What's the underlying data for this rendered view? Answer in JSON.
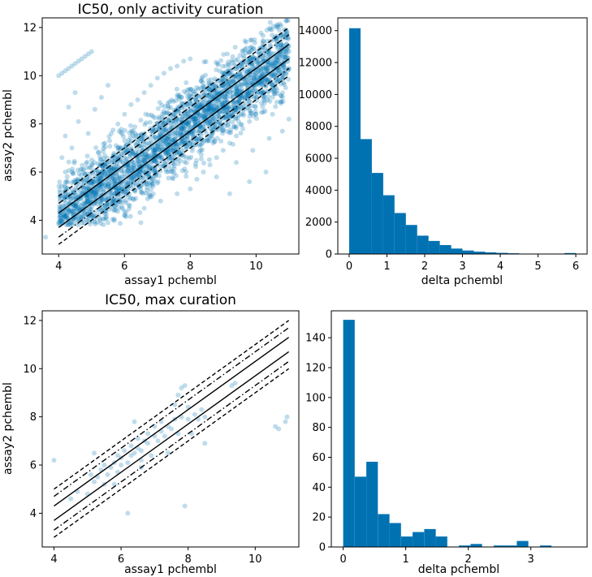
{
  "colors": {
    "marker": "#0072b2",
    "bar": "#0072b2",
    "axis": "#000000",
    "line": "#000000"
  },
  "chart_data": [
    {
      "id": "scatter-top",
      "type": "scatter",
      "title": "IC50, only activity curation",
      "xlabel": "assay1 pchembl",
      "ylabel": "assay2 pchembl",
      "xlim": [
        3.5,
        11.3
      ],
      "ylim": [
        2.6,
        12.4
      ],
      "xticks": [
        4,
        6,
        8,
        10
      ],
      "yticks": [
        4,
        6,
        8,
        10,
        12
      ],
      "reference_lines": [
        {
          "style": "solid",
          "offset": 0.3
        },
        {
          "style": "solid",
          "offset": -0.3
        },
        {
          "style": "dashdot",
          "offset": 0.7
        },
        {
          "style": "dashdot",
          "offset": -0.7
        },
        {
          "style": "dashed",
          "offset": 1.0
        },
        {
          "style": "dashed",
          "offset": -1.0
        }
      ],
      "x_range": [
        4,
        11
      ],
      "point_alpha": 0.25,
      "points": [
        [
          4.0,
          10.0
        ],
        [
          4.1,
          10.1
        ],
        [
          4.2,
          10.2
        ],
        [
          4.3,
          10.3
        ],
        [
          4.4,
          10.4
        ],
        [
          4.5,
          10.5
        ],
        [
          4.6,
          10.6
        ],
        [
          4.7,
          10.7
        ],
        [
          4.8,
          10.8
        ],
        [
          4.9,
          10.9
        ],
        [
          5.0,
          11.0
        ],
        [
          3.6,
          3.3
        ],
        [
          4.0,
          3.9
        ],
        [
          4.1,
          4.4
        ],
        [
          4.2,
          4.9
        ],
        [
          4.3,
          5.3
        ],
        [
          4.3,
          4.1
        ],
        [
          4.5,
          4.6
        ],
        [
          4.5,
          5.6
        ],
        [
          4.6,
          3.8
        ],
        [
          4.7,
          4.9
        ],
        [
          4.8,
          5.9
        ],
        [
          4.8,
          4.3
        ],
        [
          5.0,
          5.2
        ],
        [
          5.0,
          6.3
        ],
        [
          5.0,
          4.4
        ],
        [
          5.2,
          5.6
        ],
        [
          5.2,
          6.8
        ],
        [
          5.3,
          4.7
        ],
        [
          5.4,
          5.9
        ],
        [
          5.4,
          7.2
        ],
        [
          5.5,
          4.9
        ],
        [
          5.6,
          6.2
        ],
        [
          5.6,
          7.6
        ],
        [
          5.7,
          5.1
        ],
        [
          5.8,
          6.5
        ],
        [
          5.8,
          8.0
        ],
        [
          5.9,
          5.4
        ],
        [
          6.0,
          6.8
        ],
        [
          6.0,
          8.4
        ],
        [
          6.1,
          5.6
        ],
        [
          6.2,
          7.0
        ],
        [
          6.2,
          8.8
        ],
        [
          6.3,
          5.8
        ],
        [
          6.4,
          7.2
        ],
        [
          6.4,
          9.0
        ],
        [
          6.5,
          6.0
        ],
        [
          6.6,
          7.5
        ],
        [
          6.6,
          9.3
        ],
        [
          6.7,
          6.3
        ],
        [
          6.8,
          7.7
        ],
        [
          6.8,
          9.6
        ],
        [
          6.9,
          6.5
        ],
        [
          7.0,
          8.0
        ],
        [
          7.0,
          9.9
        ],
        [
          7.1,
          6.7
        ],
        [
          7.2,
          8.2
        ],
        [
          7.2,
          10.1
        ],
        [
          7.3,
          6.9
        ],
        [
          7.4,
          8.4
        ],
        [
          7.4,
          10.3
        ],
        [
          7.5,
          7.1
        ],
        [
          7.6,
          8.6
        ],
        [
          7.6,
          10.4
        ],
        [
          7.7,
          7.3
        ],
        [
          7.8,
          8.8
        ],
        [
          7.8,
          10.6
        ],
        [
          7.9,
          7.5
        ],
        [
          8.0,
          9.0
        ],
        [
          8.0,
          10.7
        ],
        [
          8.1,
          7.7
        ],
        [
          8.2,
          9.2
        ],
        [
          8.2,
          5.7
        ],
        [
          8.3,
          7.9
        ],
        [
          8.4,
          9.4
        ],
        [
          8.4,
          6.0
        ],
        [
          8.5,
          8.1
        ],
        [
          8.6,
          9.6
        ],
        [
          8.6,
          6.3
        ],
        [
          8.7,
          8.3
        ],
        [
          8.8,
          9.8
        ],
        [
          8.8,
          6.6
        ],
        [
          8.9,
          8.5
        ],
        [
          9.0,
          10.0
        ],
        [
          9.0,
          6.9
        ],
        [
          9.1,
          8.7
        ],
        [
          9.2,
          10.2
        ],
        [
          9.2,
          7.2
        ],
        [
          9.3,
          8.9
        ],
        [
          9.4,
          10.4
        ],
        [
          9.4,
          7.5
        ],
        [
          9.5,
          9.1
        ],
        [
          9.6,
          10.5
        ],
        [
          9.6,
          7.8
        ],
        [
          9.7,
          9.3
        ],
        [
          9.8,
          10.6
        ],
        [
          9.8,
          8.1
        ],
        [
          9.9,
          9.5
        ],
        [
          10.0,
          10.7
        ],
        [
          10.0,
          8.4
        ],
        [
          10.1,
          9.7
        ],
        [
          10.2,
          10.8
        ],
        [
          10.2,
          8.7
        ],
        [
          10.3,
          9.9
        ],
        [
          10.4,
          10.9
        ],
        [
          10.5,
          10.1
        ],
        [
          10.6,
          10.4
        ],
        [
          10.7,
          10.6
        ],
        [
          10.8,
          10.8
        ],
        [
          10.9,
          10.9
        ],
        [
          11.0,
          10.3
        ],
        [
          10.8,
          7.7
        ],
        [
          10.5,
          8.4
        ],
        [
          11.0,
          8.2
        ],
        [
          10.9,
          9.5
        ],
        [
          4.2,
          6.0
        ],
        [
          4.4,
          7.0
        ],
        [
          4.6,
          8.1
        ],
        [
          4.5,
          9.3
        ],
        [
          4.3,
          8.7
        ],
        [
          4.9,
          7.6
        ],
        [
          5.1,
          8.6
        ],
        [
          5.3,
          9.1
        ],
        [
          5.5,
          9.6
        ],
        [
          4.1,
          6.6
        ],
        [
          4.2,
          7.5
        ],
        [
          6.0,
          4.2
        ],
        [
          6.6,
          4.5
        ],
        [
          7.1,
          4.8
        ],
        [
          7.6,
          5.1
        ],
        [
          8.0,
          5.3
        ],
        [
          8.8,
          5.8
        ],
        [
          9.4,
          6.4
        ],
        [
          9.9,
          6.9
        ],
        [
          10.4,
          7.4
        ],
        [
          6.5,
          3.9
        ],
        [
          5.5,
          3.9
        ],
        [
          9.8,
          5.6
        ],
        [
          10.3,
          6.0
        ],
        [
          9.2,
          5.1
        ]
      ]
    },
    {
      "id": "hist-top",
      "type": "bar",
      "xlabel": "delta pchembl",
      "ylabel": "",
      "xlim": [
        -0.3,
        6.3
      ],
      "ylim": [
        0,
        14800
      ],
      "xticks": [
        0,
        1,
        2,
        3,
        4,
        5,
        6
      ],
      "yticks": [
        0,
        2000,
        4000,
        6000,
        8000,
        10000,
        12000,
        14000
      ],
      "bin_width": 0.3,
      "bin_start": 0,
      "values": [
        14150,
        7200,
        5080,
        3680,
        2570,
        1820,
        1150,
        820,
        560,
        340,
        220,
        150,
        100,
        70,
        45,
        25,
        15,
        8,
        5,
        60
      ]
    },
    {
      "id": "scatter-bottom",
      "type": "scatter",
      "title": "IC50, max curation",
      "xlabel": "assay1 pchembl",
      "ylabel": "assay2 pchembl",
      "xlim": [
        3.65,
        11.3
      ],
      "ylim": [
        2.6,
        12.4
      ],
      "xticks": [
        4,
        6,
        8,
        10
      ],
      "yticks": [
        4,
        6,
        8,
        10,
        12
      ],
      "reference_lines": [
        {
          "style": "solid",
          "offset": 0.3
        },
        {
          "style": "solid",
          "offset": -0.3
        },
        {
          "style": "dashdot",
          "offset": 0.7
        },
        {
          "style": "dashdot",
          "offset": -0.7
        },
        {
          "style": "dashed",
          "offset": 1.0
        },
        {
          "style": "dashed",
          "offset": -1.0
        }
      ],
      "x_range": [
        4,
        11
      ],
      "point_alpha": 0.25,
      "points": [
        [
          4.0,
          6.2
        ],
        [
          4.5,
          4.6
        ],
        [
          4.7,
          4.9
        ],
        [
          5.0,
          4.8
        ],
        [
          5.1,
          5.6
        ],
        [
          5.2,
          5.3
        ],
        [
          5.3,
          5.5
        ],
        [
          5.4,
          5.8
        ],
        [
          5.5,
          5.2
        ],
        [
          5.5,
          6.0
        ],
        [
          5.6,
          5.6
        ],
        [
          5.7,
          5.9
        ],
        [
          5.8,
          6.1
        ],
        [
          5.9,
          5.7
        ],
        [
          5.9,
          6.4
        ],
        [
          6.0,
          6.0
        ],
        [
          6.0,
          6.3
        ],
        [
          6.1,
          6.6
        ],
        [
          6.2,
          4.0
        ],
        [
          6.2,
          6.1
        ],
        [
          6.3,
          6.8
        ],
        [
          6.3,
          6.4
        ],
        [
          6.4,
          6.5
        ],
        [
          6.4,
          7.8
        ],
        [
          6.5,
          6.7
        ],
        [
          6.5,
          7.1
        ],
        [
          6.6,
          6.6
        ],
        [
          6.6,
          6.2
        ],
        [
          6.7,
          7.0
        ],
        [
          6.8,
          6.9
        ],
        [
          6.8,
          7.3
        ],
        [
          6.9,
          6.4
        ],
        [
          7.0,
          7.2
        ],
        [
          7.0,
          7.6
        ],
        [
          7.1,
          7.0
        ],
        [
          7.2,
          7.4
        ],
        [
          7.2,
          7.8
        ],
        [
          7.3,
          7.2
        ],
        [
          7.4,
          7.6
        ],
        [
          7.4,
          6.5
        ],
        [
          7.5,
          7.5
        ],
        [
          7.6,
          7.9
        ],
        [
          7.6,
          8.5
        ],
        [
          7.7,
          7.3
        ],
        [
          7.7,
          8.9
        ],
        [
          7.8,
          9.2
        ],
        [
          7.8,
          8.0
        ],
        [
          7.9,
          4.3
        ],
        [
          7.9,
          9.3
        ],
        [
          8.0,
          7.9
        ],
        [
          8.0,
          8.4
        ],
        [
          8.1,
          7.3
        ],
        [
          8.2,
          8.1
        ],
        [
          8.3,
          7.9
        ],
        [
          8.4,
          8.3
        ],
        [
          8.5,
          8.0
        ],
        [
          8.5,
          6.9
        ],
        [
          9.3,
          9.3
        ],
        [
          9.4,
          9.4
        ],
        [
          10.6,
          7.6
        ],
        [
          10.7,
          7.5
        ],
        [
          10.9,
          7.8
        ],
        [
          10.95,
          8.0
        ],
        [
          5.2,
          6.5
        ],
        [
          5.8,
          5.2
        ],
        [
          6.6,
          5.9
        ]
      ]
    },
    {
      "id": "hist-bottom",
      "type": "bar",
      "xlabel": "delta pchembl",
      "ylabel": "",
      "xlim": [
        -0.19,
        3.9
      ],
      "ylim": [
        0,
        158
      ],
      "xticks": [
        0,
        1,
        2,
        3
      ],
      "yticks": [
        0,
        20,
        40,
        60,
        80,
        100,
        120,
        140
      ],
      "bin_width": 0.185,
      "bin_start": 0,
      "values": [
        152,
        47,
        57,
        22,
        16,
        7,
        10,
        12,
        7,
        0,
        1,
        2,
        0,
        1,
        1,
        4,
        0,
        1
      ]
    }
  ]
}
